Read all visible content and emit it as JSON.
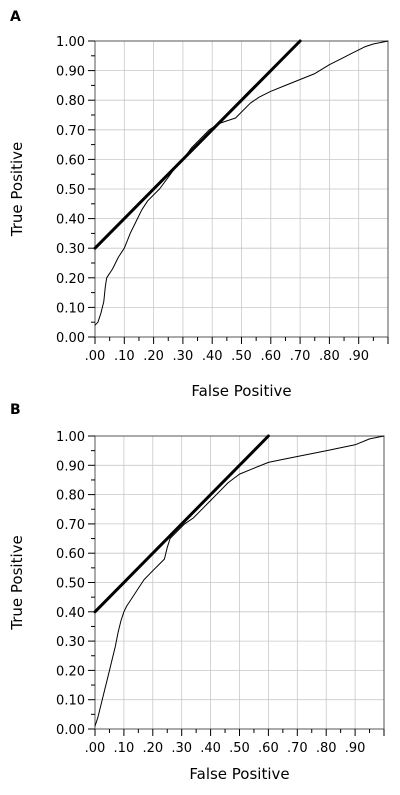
{
  "chart_data": [
    {
      "panel_label": "A",
      "type": "line",
      "xlabel": "False Positive",
      "ylabel": "True Positive",
      "xlim": [
        0,
        1
      ],
      "ylim": [
        0,
        1
      ],
      "x_tick_labels": [
        ".00",
        ".10",
        ".20",
        ".30",
        ".40",
        ".50",
        ".60",
        ".70",
        ".80",
        ".90"
      ],
      "y_tick_labels": [
        "0.00",
        "0.10",
        "0.20",
        "0.30",
        "0.40",
        "0.50",
        "0.60",
        "0.70",
        "0.80",
        "0.90",
        "1.00"
      ],
      "grid": true,
      "series": [
        {
          "style": "thin",
          "points": [
            [
              0.0,
              0.04
            ],
            [
              0.01,
              0.05
            ],
            [
              0.02,
              0.08
            ],
            [
              0.03,
              0.12
            ],
            [
              0.035,
              0.17
            ],
            [
              0.04,
              0.2
            ],
            [
              0.06,
              0.23
            ],
            [
              0.08,
              0.27
            ],
            [
              0.1,
              0.3
            ],
            [
              0.12,
              0.35
            ],
            [
              0.14,
              0.39
            ],
            [
              0.16,
              0.43
            ],
            [
              0.18,
              0.46
            ],
            [
              0.2,
              0.48
            ],
            [
              0.22,
              0.5
            ],
            [
              0.25,
              0.54
            ],
            [
              0.28,
              0.58
            ],
            [
              0.3,
              0.6
            ],
            [
              0.33,
              0.64
            ],
            [
              0.36,
              0.67
            ],
            [
              0.39,
              0.7
            ],
            [
              0.42,
              0.72
            ],
            [
              0.45,
              0.73
            ],
            [
              0.48,
              0.74
            ],
            [
              0.5,
              0.76
            ],
            [
              0.53,
              0.79
            ],
            [
              0.56,
              0.81
            ],
            [
              0.6,
              0.83
            ],
            [
              0.65,
              0.85
            ],
            [
              0.7,
              0.87
            ],
            [
              0.75,
              0.89
            ],
            [
              0.8,
              0.92
            ],
            [
              0.84,
              0.94
            ],
            [
              0.88,
              0.96
            ],
            [
              0.92,
              0.98
            ],
            [
              0.95,
              0.99
            ],
            [
              1.0,
              1.0
            ]
          ]
        },
        {
          "style": "thick",
          "points": [
            [
              0.0,
              0.3
            ],
            [
              0.7,
              1.0
            ]
          ]
        }
      ]
    },
    {
      "panel_label": "B",
      "type": "line",
      "xlabel": "False Positive",
      "ylabel": "True Positive",
      "xlim": [
        0,
        1
      ],
      "ylim": [
        0,
        1
      ],
      "x_tick_labels": [
        ".00",
        ".10",
        ".20",
        ".30",
        ".40",
        ".50",
        ".60",
        ".70",
        ".80",
        ".90"
      ],
      "y_tick_labels": [
        "0.00",
        "0.10",
        "0.20",
        "0.30",
        "0.40",
        "0.50",
        "0.60",
        "0.70",
        "0.80",
        "0.90",
        "1.00"
      ],
      "grid": true,
      "series": [
        {
          "style": "thin",
          "points": [
            [
              0.0,
              0.01
            ],
            [
              0.01,
              0.04
            ],
            [
              0.02,
              0.08
            ],
            [
              0.03,
              0.12
            ],
            [
              0.04,
              0.16
            ],
            [
              0.05,
              0.2
            ],
            [
              0.06,
              0.24
            ],
            [
              0.07,
              0.28
            ],
            [
              0.08,
              0.33
            ],
            [
              0.09,
              0.37
            ],
            [
              0.1,
              0.4
            ],
            [
              0.11,
              0.42
            ],
            [
              0.13,
              0.45
            ],
            [
              0.15,
              0.48
            ],
            [
              0.17,
              0.51
            ],
            [
              0.19,
              0.53
            ],
            [
              0.22,
              0.56
            ],
            [
              0.24,
              0.58
            ],
            [
              0.25,
              0.62
            ],
            [
              0.26,
              0.65
            ],
            [
              0.28,
              0.67
            ],
            [
              0.31,
              0.7
            ],
            [
              0.34,
              0.72
            ],
            [
              0.37,
              0.75
            ],
            [
              0.4,
              0.78
            ],
            [
              0.43,
              0.81
            ],
            [
              0.46,
              0.84
            ],
            [
              0.5,
              0.87
            ],
            [
              0.55,
              0.89
            ],
            [
              0.6,
              0.91
            ],
            [
              0.65,
              0.92
            ],
            [
              0.7,
              0.93
            ],
            [
              0.75,
              0.94
            ],
            [
              0.8,
              0.95
            ],
            [
              0.85,
              0.96
            ],
            [
              0.9,
              0.97
            ],
            [
              0.95,
              0.99
            ],
            [
              1.0,
              1.0
            ]
          ]
        },
        {
          "style": "thick",
          "points": [
            [
              0.0,
              0.4
            ],
            [
              0.6,
              1.0
            ]
          ]
        }
      ]
    }
  ]
}
